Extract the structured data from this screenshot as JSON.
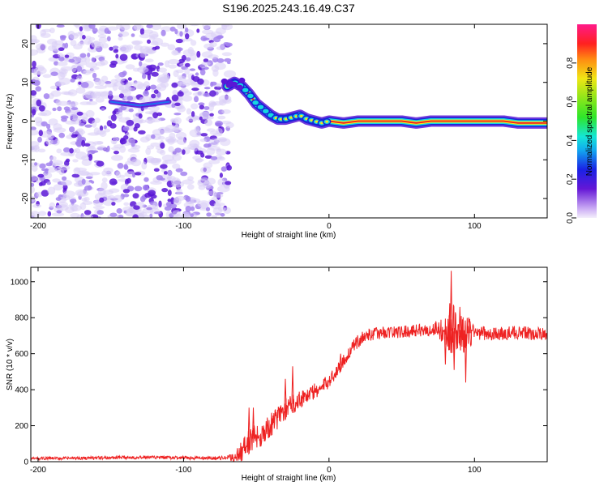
{
  "title": "S196.2025.243.16.49.C37",
  "colors": {
    "snr_line": "#ee2222",
    "scatter_light": "#d8cdf6",
    "scatter_mid": "#a383ee",
    "scatter_dark": "#5a17d6",
    "ridge_outer": "#1a22d8",
    "ridge_mid": "#15d8e0",
    "ridge_inner": "#ffe21a",
    "ridge_core": "#ee1a22"
  },
  "chart_data": [
    {
      "id": "spectrogram",
      "type": "heatmap",
      "title": "S196.2025.243.16.49.C37",
      "xlabel": "Height of straight line (km)",
      "ylabel": "Frequency (Hz)",
      "xlim": [
        -205,
        150
      ],
      "ylim": [
        -25,
        25
      ],
      "xticks": [
        "-200",
        "-100",
        "0",
        "100"
      ],
      "xtick_values": [
        -200,
        -100,
        0,
        100
      ],
      "yticks": [
        "-20",
        "-10",
        "0",
        "10",
        "20"
      ],
      "ytick_values": [
        -20,
        -10,
        0,
        10,
        20
      ],
      "noise_region_km": [
        -205,
        -68
      ],
      "ridge": {
        "x": [
          -70,
          -65,
          -60,
          -55,
          -50,
          -45,
          -40,
          -35,
          -30,
          -25,
          -20,
          -15,
          -10,
          -5,
          0,
          10,
          20,
          30,
          40,
          50,
          60,
          70,
          80,
          90,
          100,
          110,
          120,
          130,
          140,
          150
        ],
        "freq": [
          9,
          10,
          9,
          7,
          4.5,
          3,
          1.5,
          0.5,
          0.5,
          1,
          1.5,
          0.5,
          0,
          -0.5,
          0,
          -0.5,
          0,
          0,
          0,
          0,
          -0.5,
          0,
          0,
          0,
          0,
          0,
          0,
          -0.5,
          -0.5,
          -0.5
        ],
        "amplitude": [
          0.2,
          0.25,
          0.3,
          0.4,
          0.5,
          0.6,
          0.65,
          0.7,
          0.75,
          0.75,
          0.8,
          0.85,
          0.85,
          0.9,
          0.9,
          0.95,
          0.95,
          0.95,
          0.95,
          0.95,
          0.95,
          0.95,
          0.95,
          0.95,
          0.95,
          0.95,
          0.95,
          0.95,
          0.95,
          0.95
        ]
      },
      "weak_track": {
        "x": [
          -150,
          -140,
          -130,
          -120,
          -110
        ],
        "freq": [
          5,
          4.5,
          4,
          4.5,
          5
        ]
      }
    },
    {
      "id": "colorbar",
      "type": "heatmap",
      "label": "Normalized spectral amplitude",
      "range": [
        0.0,
        1.0
      ],
      "ticks": [
        "0.0",
        "0.2",
        "0.4",
        "0.6",
        "0.8"
      ],
      "tick_values": [
        0,
        0.2,
        0.4,
        0.6,
        0.8
      ],
      "colormap": [
        {
          "stop": 0.0,
          "color": "#f4eefb"
        },
        {
          "stop": 0.05,
          "color": "#c9a9f4"
        },
        {
          "stop": 0.15,
          "color": "#6417d6"
        },
        {
          "stop": 0.25,
          "color": "#1a22e6"
        },
        {
          "stop": 0.35,
          "color": "#12a9f0"
        },
        {
          "stop": 0.42,
          "color": "#14e6d6"
        },
        {
          "stop": 0.52,
          "color": "#2ee62a"
        },
        {
          "stop": 0.62,
          "color": "#8ee61a"
        },
        {
          "stop": 0.72,
          "color": "#f0e614"
        },
        {
          "stop": 0.82,
          "color": "#ff8a12"
        },
        {
          "stop": 0.9,
          "color": "#ff2020"
        },
        {
          "stop": 1.0,
          "color": "#ff1a8a"
        }
      ]
    },
    {
      "id": "snr",
      "type": "line",
      "xlabel": "Height of straight line (km)",
      "ylabel": "SNR (10 * v/v)",
      "xlim": [
        -205,
        150
      ],
      "ylim": [
        0,
        1080
      ],
      "xticks": [
        "-200",
        "-100",
        "0",
        "100"
      ],
      "xtick_values": [
        -200,
        -100,
        0,
        100
      ],
      "yticks": [
        "0",
        "200",
        "400",
        "600",
        "800",
        "1000"
      ],
      "ytick_values": [
        0,
        200,
        400,
        600,
        800,
        1000
      ],
      "series": [
        {
          "name": "SNR",
          "envelope_x": [
            -205,
            -190,
            -170,
            -150,
            -130,
            -110,
            -90,
            -75,
            -65,
            -60,
            -55,
            -50,
            -45,
            -40,
            -35,
            -30,
            -25,
            -20,
            -15,
            -10,
            -5,
            0,
            5,
            10,
            15,
            20,
            25,
            30,
            40,
            50,
            60,
            70,
            75,
            80,
            85,
            90,
            95,
            100,
            110,
            120,
            130,
            140,
            150
          ],
          "envelope_y": [
            18,
            18,
            20,
            22,
            25,
            22,
            20,
            20,
            25,
            60,
            110,
            140,
            160,
            200,
            250,
            290,
            320,
            350,
            370,
            390,
            410,
            450,
            500,
            560,
            620,
            670,
            700,
            710,
            720,
            720,
            730,
            730,
            740,
            720,
            730,
            700,
            710,
            720,
            710,
            710,
            720,
            710,
            710
          ],
          "noise_amp_x": [
            -205,
            -70,
            -55,
            -30,
            0,
            30,
            70,
            80,
            85,
            90,
            95,
            100,
            150
          ],
          "noise_amp_y": [
            8,
            10,
            80,
            60,
            40,
            35,
            35,
            80,
            150,
            120,
            120,
            40,
            35
          ],
          "spikes": [
            {
              "x": -55,
              "y": 300
            },
            {
              "x": -52,
              "y": 300
            },
            {
              "x": -30,
              "y": 460
            },
            {
              "x": -25,
              "y": 530
            },
            {
              "x": 8,
              "y": 600
            },
            {
              "x": 58,
              "y": 760
            },
            {
              "x": 80,
              "y": 540
            },
            {
              "x": 83,
              "y": 880
            },
            {
              "x": 84,
              "y": 1060
            },
            {
              "x": 86,
              "y": 510
            },
            {
              "x": 90,
              "y": 860
            },
            {
              "x": 94,
              "y": 440
            },
            {
              "x": 97,
              "y": 780
            }
          ]
        }
      ]
    }
  ]
}
